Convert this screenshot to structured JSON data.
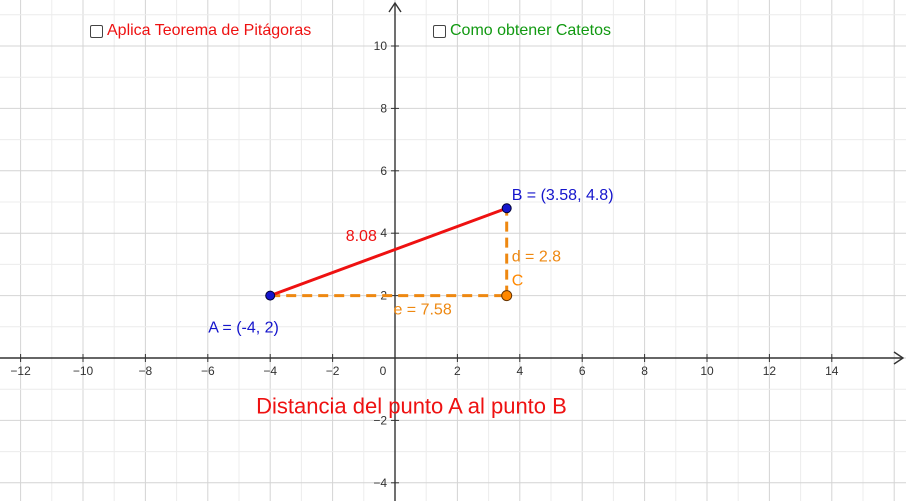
{
  "checkboxes": [
    {
      "label": "Aplica Teorema de Pitágoras",
      "checked": false,
      "color": "#ee1111"
    },
    {
      "label": "Como obtener Catetos",
      "checked": false,
      "color": "#119911"
    }
  ],
  "graph": {
    "x_ticks": [
      -12,
      -10,
      -8,
      -6,
      -4,
      -2,
      0,
      2,
      4,
      6,
      8,
      10,
      12,
      14
    ],
    "y_ticks": [
      -4,
      -2,
      2,
      4,
      6,
      8,
      10
    ],
    "tick_labels_x": [
      "−12",
      "−10",
      "−8",
      "−6",
      "−4",
      "−2",
      "0",
      "2",
      "4",
      "6",
      "8",
      "10",
      "12",
      "14"
    ],
    "tick_labels_y": [
      "−4",
      "−2",
      "2",
      "4",
      "6",
      "8",
      "10"
    ],
    "grid": true
  },
  "points": {
    "A": {
      "x": -4,
      "y": 2,
      "label": "A = (-4, 2)",
      "color": "#1515cc"
    },
    "B": {
      "x": 3.58,
      "y": 4.8,
      "label": "B = (3.58, 4.8)",
      "color": "#1515cc"
    },
    "C": {
      "x": 3.58,
      "y": 2,
      "label": "C",
      "color": "#ff8800"
    }
  },
  "segments": {
    "hyp": {
      "label": "8.08",
      "color": "#ee1111"
    },
    "d": {
      "label": "d = 2.8",
      "color": "#ee8811"
    },
    "e": {
      "label": "e = 7.58",
      "color": "#ee8811"
    }
  },
  "caption": {
    "text": "Distancia del punto A al punto B",
    "color": "#ee1111"
  }
}
